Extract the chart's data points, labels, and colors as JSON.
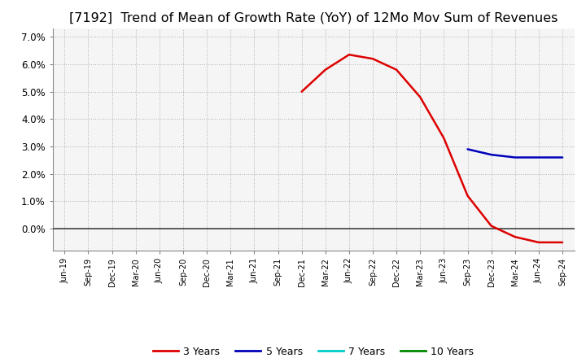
{
  "title": "[7192]  Trend of Mean of Growth Rate (YoY) of 12Mo Mov Sum of Revenues",
  "title_fontsize": 11.5,
  "title_fontweight": "normal",
  "background_color": "#ffffff",
  "plot_bg_color": "#f5f5f5",
  "grid_color": "#aaaaaa",
  "ylim": [
    -0.008,
    0.073
  ],
  "yticks": [
    0.0,
    0.01,
    0.02,
    0.03,
    0.04,
    0.05,
    0.06,
    0.07
  ],
  "ytick_labels": [
    "0.0%",
    "1.0%",
    "2.0%",
    "3.0%",
    "4.0%",
    "5.0%",
    "6.0%",
    "7.0%"
  ],
  "x_labels": [
    "Jun-19",
    "Sep-19",
    "Dec-19",
    "Mar-20",
    "Jun-20",
    "Sep-20",
    "Dec-20",
    "Mar-21",
    "Jun-21",
    "Sep-21",
    "Dec-21",
    "Mar-22",
    "Jun-22",
    "Sep-22",
    "Dec-22",
    "Mar-23",
    "Jun-23",
    "Sep-23",
    "Dec-23",
    "Mar-24",
    "Jun-24",
    "Sep-24"
  ],
  "series": [
    {
      "name": "3 Years",
      "color": "#dd0000",
      "linewidth": 1.8,
      "x_indices": [
        10,
        11,
        12,
        13,
        14,
        15,
        16,
        17,
        18,
        19,
        20,
        21
      ],
      "y": [
        0.05,
        0.058,
        0.0635,
        0.062,
        0.058,
        0.048,
        0.033,
        0.012,
        0.001,
        -0.003,
        -0.005,
        -0.005
      ]
    },
    {
      "name": "5 Years",
      "color": "#0000bb",
      "linewidth": 1.8,
      "x_indices": [
        17,
        18,
        19,
        20,
        21
      ],
      "y": [
        0.029,
        0.027,
        0.026,
        0.026,
        0.026
      ]
    },
    {
      "name": "7 Years",
      "color": "#00cccc",
      "linewidth": 1.5,
      "x_indices": [],
      "y": []
    },
    {
      "name": "10 Years",
      "color": "#008800",
      "linewidth": 1.5,
      "x_indices": [],
      "y": []
    }
  ],
  "legend_colors": [
    "#dd0000",
    "#0000bb",
    "#00cccc",
    "#008800"
  ],
  "legend_names": [
    "3 Years",
    "5 Years",
    "7 Years",
    "10 Years"
  ],
  "zero_line_color": "#444444",
  "zero_line_y": 0.0
}
